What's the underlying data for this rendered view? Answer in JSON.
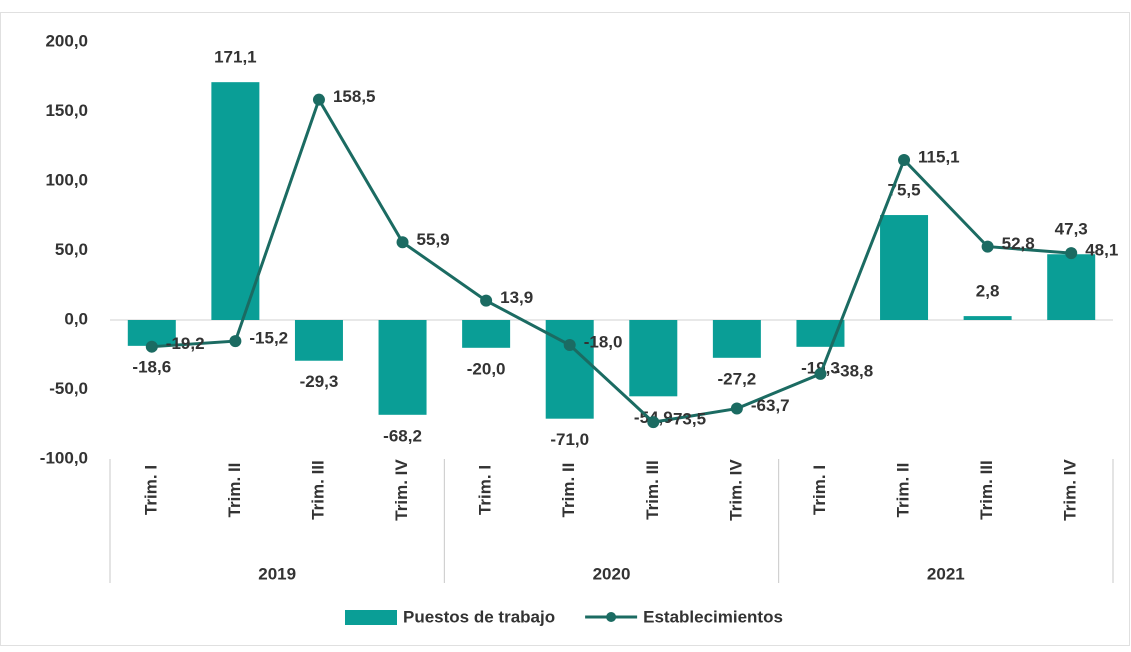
{
  "chart_data": {
    "type": "bar-line",
    "categories": [
      "Trim. I",
      "Trim. II",
      "Trim. III",
      "Trim. IV",
      "Trim. I",
      "Trim. II",
      "Trim. III",
      "Trim. IV",
      "Trim. I",
      "Trim. II",
      "Trim. III",
      "Trim. IV"
    ],
    "groups": [
      "2019",
      "2020",
      "2021"
    ],
    "series": [
      {
        "name": "Puestos de trabajo",
        "type": "bar",
        "color": "#0a9e96",
        "values": [
          -18.6,
          171.1,
          -29.3,
          -68.2,
          -20.0,
          -71.0,
          -54.9,
          -27.2,
          -19.3,
          75.5,
          2.8,
          47.3
        ],
        "value_labels": [
          "-18,6",
          "171,1",
          "-29,3",
          "-68,2",
          "-20,0",
          "-71,0",
          "-54,9",
          "-27,2",
          "-19,3",
          "75,5",
          "2,8",
          "47,3"
        ]
      },
      {
        "name": "Establecimientos",
        "type": "line",
        "color": "#1b6b62",
        "values": [
          -19.2,
          -15.2,
          158.5,
          55.9,
          13.9,
          -18.0,
          -73.5,
          -63.7,
          -38.8,
          115.1,
          52.8,
          48.1
        ],
        "value_labels": [
          "-19,2",
          "-15,2",
          "158,5",
          "55,9",
          "13,9",
          "-18,0",
          "-73,5",
          "-63,7",
          "-38,8",
          "115,1",
          "52,8",
          "48,1"
        ]
      }
    ],
    "ylim": [
      -100,
      200
    ],
    "yticks": [
      {
        "value": -100,
        "label": "-100,0"
      },
      {
        "value": -50,
        "label": "-50,0"
      },
      {
        "value": 0,
        "label": "0,0"
      },
      {
        "value": 50,
        "label": "50,0"
      },
      {
        "value": 100,
        "label": "100,0"
      },
      {
        "value": 150,
        "label": "150,0"
      },
      {
        "value": 200,
        "label": "200,0"
      }
    ],
    "legend": "bottom"
  }
}
